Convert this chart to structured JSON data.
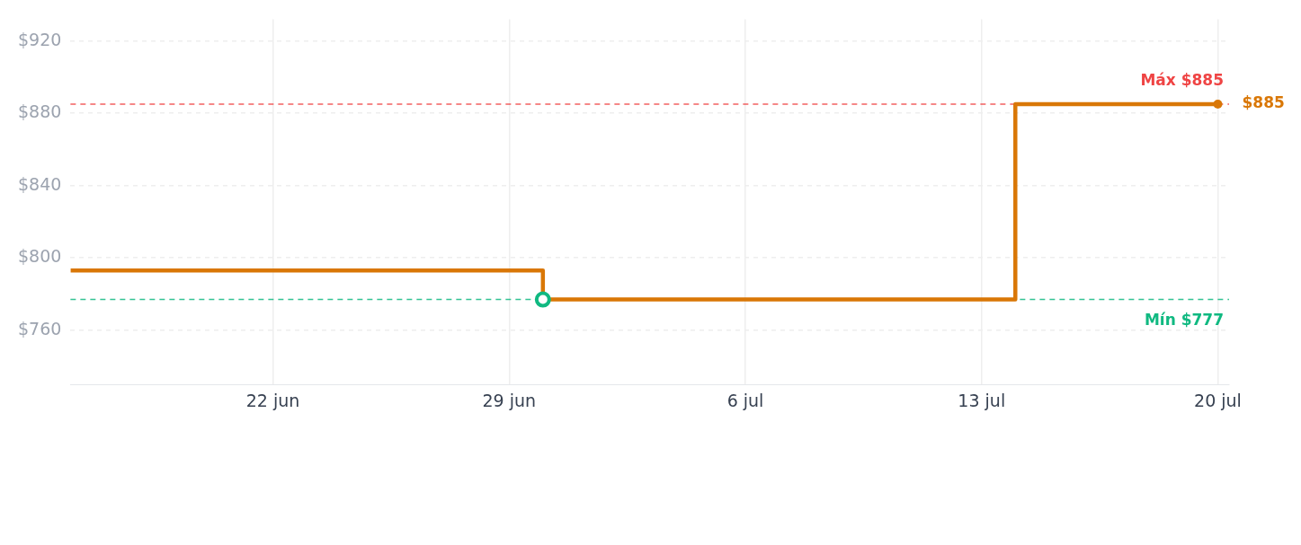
{
  "chart_data": {
    "type": "step",
    "x": [
      "--06-16",
      "--06-30",
      "--07-14",
      "--07-20"
    ],
    "series": [
      {
        "color": "#d97706",
        "values": [
          793,
          777,
          885,
          885
        ],
        "colors": [
          "#d97706",
          "#10b981",
          "#d97706",
          "#d97706"
        ],
        "value_labels": [
          null,
          null,
          null,
          "$885"
        ]
      }
    ],
    "xlim": [
      "--06-16",
      "--07-20T08:00"
    ],
    "xticks": [
      {
        "value": "--06-22",
        "label": "22 jun"
      },
      {
        "value": "--06-29",
        "label": "29 jun"
      },
      {
        "value": "--07-06",
        "label": "6 jul"
      },
      {
        "value": "--07-13",
        "label": "13 jul"
      },
      {
        "value": "--07-20",
        "label": "20 jul"
      }
    ],
    "ylim": [
      730,
      932
    ],
    "yticks": [
      {
        "value": 760,
        "label": "$760"
      },
      {
        "value": 800,
        "label": "$800"
      },
      {
        "value": 840,
        "label": "$840"
      },
      {
        "value": 880,
        "label": "$880"
      },
      {
        "value": 920,
        "label": "$920"
      }
    ],
    "ref_lines": [
      {
        "axis": "y",
        "value": 885,
        "label": "Máx $885",
        "color": "#ef4444",
        "line_style": "dashed"
      },
      {
        "axis": "y",
        "value": 777,
        "label": "Mín $777",
        "color": "#10b981",
        "line_style": "dashed"
      }
    ],
    "grid": true,
    "marker": "circle",
    "line_style": "solid"
  }
}
